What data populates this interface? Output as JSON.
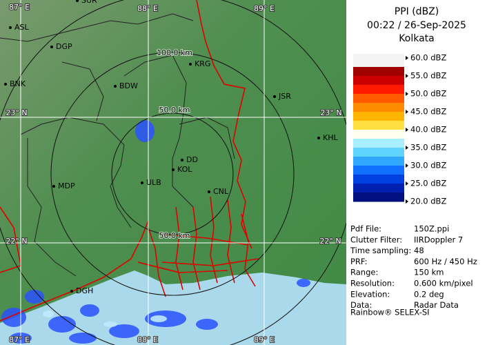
{
  "header": {
    "title": "PPI (dBZ)",
    "datetime": "00:22 / 26-Sep-2025",
    "location": "Kolkata"
  },
  "legend": {
    "labels": [
      "60.0 dBZ",
      "55.0 dBZ",
      "50.0 dBZ",
      "45.0 dBZ",
      "40.0 dBZ",
      "35.0 dBZ",
      "30.0 dBZ",
      "25.0 dBZ",
      "20.0 dBZ"
    ],
    "colors": [
      "#a00000",
      "#cc0000",
      "#ff1a00",
      "#ff5a00",
      "#ff8c00",
      "#ffb400",
      "#ffe040",
      "#fffff0",
      "#a8f0ff",
      "#60d4ff",
      "#30a8ff",
      "#1070ff",
      "#0040e0",
      "#0020b0",
      "#001080"
    ]
  },
  "info": {
    "rows": [
      [
        "Pdf File:",
        "150Z.ppi"
      ],
      [
        "Clutter Filter:",
        "IIRDoppler 7"
      ],
      [
        "Time sampling:",
        "48"
      ],
      [
        "PRF:",
        "600 Hz / 450 Hz"
      ],
      [
        "Range:",
        "150 km"
      ],
      [
        "Resolution:",
        "0.600 km/pixel"
      ],
      [
        "Elevation:",
        "0.2 deg"
      ],
      [
        "Data:",
        "Radar Data"
      ]
    ]
  },
  "footer": "Rainbow® SELEX-SI",
  "map": {
    "grid_labels": [
      "87° E",
      "88° E",
      "89° E",
      "23° N",
      "23° N",
      "22° N",
      "22° N",
      "87° E",
      "88° E",
      "89° E"
    ],
    "range_labels": [
      "100.0 km",
      "50.0 km",
      "50.0 km"
    ],
    "places": [
      "SUR",
      "ASL",
      "DGP",
      "BNK",
      "BDW",
      "KRG",
      "JSR",
      "KHL",
      "DD",
      "KOL",
      "ULB",
      "CNL",
      "MDP",
      "DGH"
    ]
  }
}
